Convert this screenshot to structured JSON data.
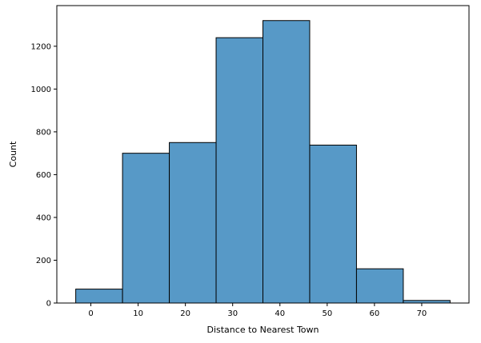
{
  "chart_data": {
    "type": "bar",
    "title": "",
    "xlabel": "Distance to Nearest Town",
    "ylabel": "Count",
    "bins": [
      {
        "x0": -3.2,
        "x1": 6.7,
        "count": 65
      },
      {
        "x0": 6.7,
        "x1": 16.6,
        "count": 700
      },
      {
        "x0": 16.6,
        "x1": 26.5,
        "count": 750
      },
      {
        "x0": 26.5,
        "x1": 36.4,
        "count": 1240
      },
      {
        "x0": 36.4,
        "x1": 46.3,
        "count": 1320
      },
      {
        "x0": 46.3,
        "x1": 56.2,
        "count": 738
      },
      {
        "x0": 56.2,
        "x1": 66.1,
        "count": 160
      },
      {
        "x0": 66.1,
        "x1": 76.0,
        "count": 12
      }
    ],
    "xlim": [
      -7.2,
      80.0
    ],
    "ylim": [
      0,
      1390
    ],
    "xticks": [
      0,
      10,
      20,
      30,
      40,
      50,
      60,
      70
    ],
    "yticks": [
      0,
      200,
      400,
      600,
      800,
      1000,
      1200
    ],
    "grid": false,
    "bar_color": "#5799c7",
    "edge_color": "#000000"
  }
}
